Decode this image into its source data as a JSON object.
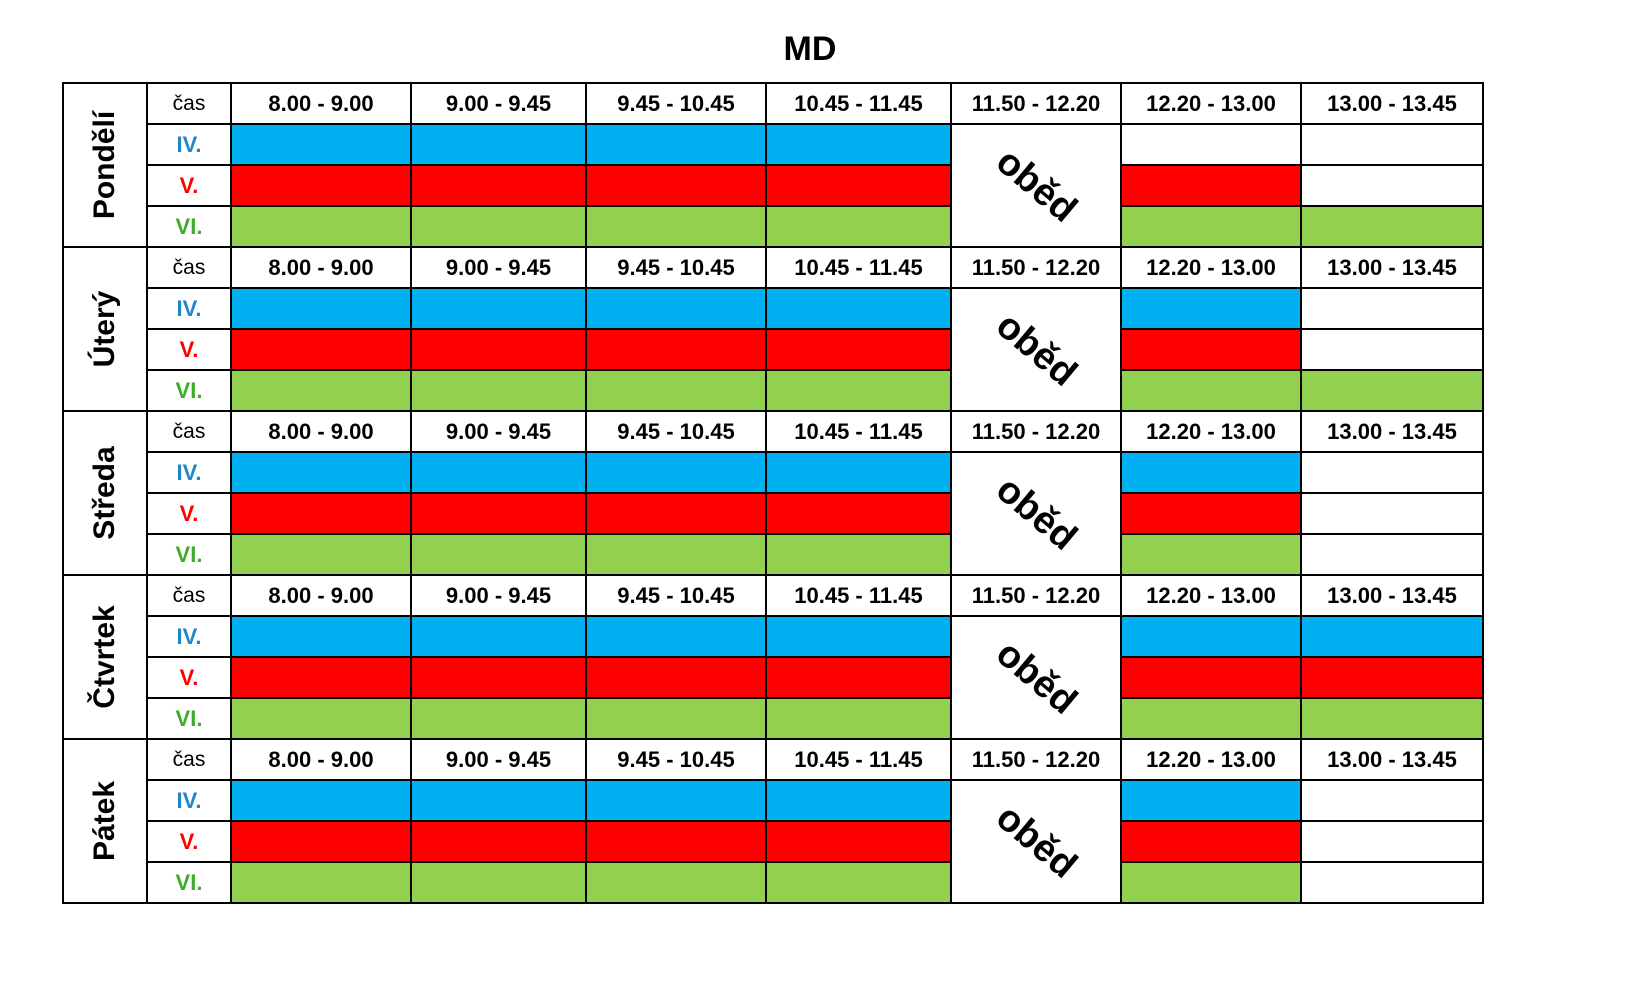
{
  "title": "MD",
  "time_label": "čas",
  "group_labels": [
    "IV.",
    "V.",
    "VI."
  ],
  "lunch_label": "oběd",
  "times": [
    "8.00 - 9.00",
    "9.00 - 9.45",
    "9.45 - 10.45",
    "10.45 - 11.45",
    "11.50 - 12.20",
    "12.20 - 13.00",
    "13.00 - 13.45"
  ],
  "colors": {
    "IV.": "#00b0f0",
    "V.": "#ff0000",
    "VI.": "#92d050"
  },
  "days": [
    {
      "name": "Pondělí",
      "after_lunch": {
        "12.20 - 13.00": [
          "V.",
          "VI."
        ],
        "13.00 - 13.45": [
          "VI."
        ]
      }
    },
    {
      "name": "Úterý",
      "after_lunch": {
        "12.20 - 13.00": [
          "IV.",
          "V.",
          "VI."
        ],
        "13.00 - 13.45": [
          "VI."
        ]
      }
    },
    {
      "name": "Středa",
      "after_lunch": {
        "12.20 - 13.00": [
          "IV.",
          "V.",
          "VI."
        ],
        "13.00 - 13.45": []
      }
    },
    {
      "name": "Čtvrtek",
      "after_lunch": {
        "12.20 - 13.00": [
          "IV.",
          "V.",
          "VI."
        ],
        "13.00 - 13.45": [
          "IV.",
          "V.",
          "VI."
        ]
      }
    },
    {
      "name": "Pátek",
      "after_lunch": {
        "12.20 - 13.00": [
          "IV.",
          "V.",
          "VI."
        ],
        "13.00 - 13.45": []
      }
    }
  ]
}
